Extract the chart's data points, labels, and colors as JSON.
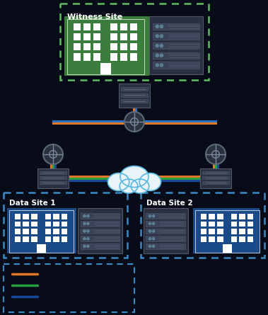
{
  "bg_color": "#080c18",
  "line_orange": "#e07828",
  "line_blue": "#2870c8",
  "line_green": "#28a040",
  "line_dark_blue": "#1a4898",
  "node_color": "#404858",
  "cloud_color": "#e8f4f8",
  "switch_color": "#2a3040",
  "switch_border": "#505868",
  "green_site_color": "#3a7d3c",
  "green_site_border": "#5dbe5e",
  "blue_site_color": "#1a4a88",
  "blue_site_border": "#3a8ac4",
  "text_white": "#ffffff",
  "witness_label": "Witness Site",
  "ds1_label": "Data Site 1",
  "ds2_label": "Data Site 2"
}
